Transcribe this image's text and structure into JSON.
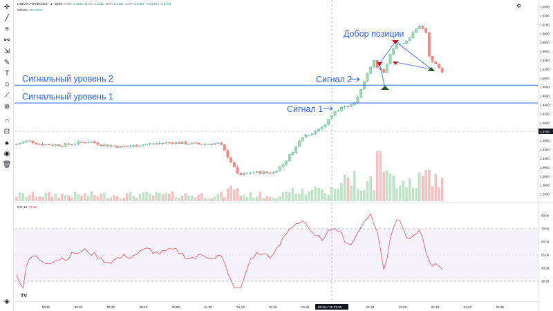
{
  "header": {
    "symbol": "LINEAR:FORMUSDT · 1 · Bybit",
    "open_label": "ОТКР",
    "open_value": "1.4208",
    "high_label": "МАКС",
    "high_value": "1.4411",
    "low_label": "МИН",
    "low_value": "1.4166",
    "close_label": "ЗАКР",
    "close_value": "1.4384",
    "change": "+0.0176 (+1.24%)",
    "volume_label": "Объём",
    "volume_value": "294.506K"
  },
  "settings_icon": "gear-icon",
  "rsi": {
    "label": "RSI 14",
    "value": "75.25"
  },
  "price_axis": [
    "1.6600",
    "1.6400",
    "1.6200",
    "1.6000",
    "1.5800",
    "1.5600",
    "1.5400",
    "1.5200",
    "1.5000",
    "1.4800",
    "1.4600",
    "1.4400",
    "1.4200",
    "1.4000",
    "1.3800",
    "1.3600",
    "1.3400",
    "1.3200",
    "1.3000",
    "1.2800",
    "1.2600",
    "1.2400"
  ],
  "price_tag": "1.3780",
  "rsi_axis": [
    "80.00",
    "70.00",
    "60.00",
    "50.00",
    "40.00",
    "30.00"
  ],
  "time_axis": [
    "00:10",
    "00:20",
    "00:30",
    "00:40",
    "00:50",
    "01:00",
    "01:10",
    "01:20",
    "01:30",
    "01:40",
    "01:50",
    "02:00",
    "02:10",
    "02:20",
    "02:30"
  ],
  "time_tag": "08 Окт '25  01:36",
  "levels": [
    {
      "label": "Сигнальный уровень 2",
      "price": 1.4845
    },
    {
      "label": "Сигнальный уровень 1",
      "price": 1.4445
    }
  ],
  "annotations": {
    "signal1": "Сигнал 1",
    "signal2": "Сигнал 2",
    "add_position": "Добор позиции"
  },
  "colors": {
    "up": "#26a69a",
    "down": "#ef5350",
    "up_fill": "#a5d6a7",
    "down_fill": "#f28b82",
    "level_line": "#2962ff",
    "rsi_line": "#f23645",
    "rsi_band": "#7e57c2",
    "volume_up": "#bfe3c7",
    "volume_down": "#f5c0c0",
    "marker_down": "#b71c1c",
    "marker_up": "#1b5e20"
  },
  "tools": [
    "crosshair-icon",
    "trend-line-icon",
    "fib-icon",
    "pattern-icon",
    "projection-icon",
    "brush-icon",
    "text-icon",
    "emoji-icon",
    "ruler-icon",
    "zoom-icon",
    "magnet-icon",
    "lock-icon",
    "eye-icon",
    "trash-icon"
  ],
  "footer_logo": "TV"
}
